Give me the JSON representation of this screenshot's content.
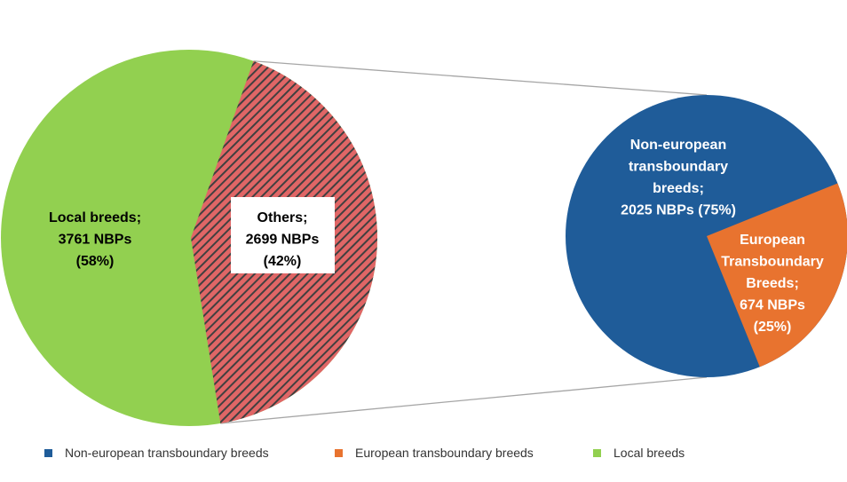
{
  "chart_data": [
    {
      "type": "pie",
      "slices": [
        {
          "name": "Local breeds",
          "value": 3761,
          "percent": 58,
          "label": [
            "Local breeds;",
            "3761 NBPs",
            "(58%)"
          ],
          "color": "#92d050"
        },
        {
          "name": "Others",
          "value": 2699,
          "percent": 42,
          "label": [
            "Others;",
            "2699 NBPs",
            "(42%)"
          ],
          "color": "#e06666",
          "hatch": "#404040"
        }
      ]
    },
    {
      "type": "pie",
      "slices": [
        {
          "name": "Non-european transboundary breeds",
          "value": 2025,
          "percent": 75,
          "label": [
            "Non-european",
            "transboundary",
            "breeds;",
            "2025 NBPs (75%)"
          ],
          "color": "#1f5c99"
        },
        {
          "name": "European transboundary breeds",
          "value": 674,
          "percent": 25,
          "label": [
            "European",
            "Transboundary",
            "Breeds;",
            "674 NBPs",
            "(25%)"
          ],
          "color": "#e8732f"
        }
      ]
    }
  ],
  "legend": {
    "placement": "bottom",
    "items": [
      {
        "label": "Non-european transboundary breeds",
        "color": "#1f5c99"
      },
      {
        "label": "European transboundary breeds",
        "color": "#e8732f"
      },
      {
        "label": "Local breeds",
        "color": "#92d050"
      }
    ]
  }
}
